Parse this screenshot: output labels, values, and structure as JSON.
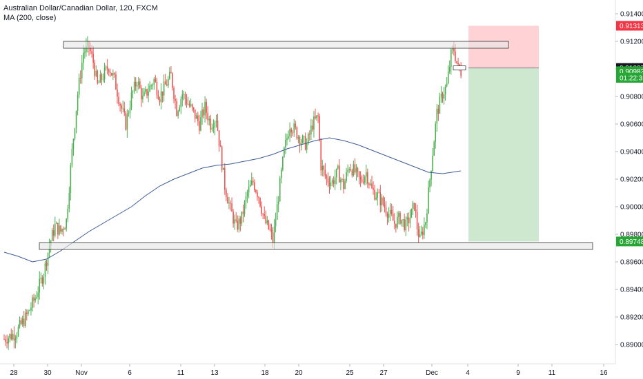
{
  "legend": {
    "title": "Australian Dollar/Canadian Dollar, 120, FXCM",
    "indicator": "MA (200, close)"
  },
  "colors": {
    "up": "#26a69a",
    "up_body": "#4caf50",
    "down": "#ef5350",
    "ma": "#3d5a96",
    "stop_zone": "#ffcdd2",
    "target_zone": "#c8e6c9",
    "stop_tag": "#f23645",
    "price_tag": "#131722",
    "target_tag": "#26a634",
    "grid": "#f0f3fa"
  },
  "chart_data": {
    "type": "candlestick",
    "title": "Australian Dollar/Canadian Dollar, 120, FXCM",
    "ylim": [
      0.8886,
      0.915
    ],
    "y_ticks": [
      0.89,
      0.892,
      0.894,
      0.896,
      0.898,
      0.9,
      0.902,
      0.904,
      0.906,
      0.908,
      0.91,
      0.912,
      0.914
    ],
    "y_tick_labels": [
      "0.89000",
      "0.89200",
      "0.89400",
      "0.89600",
      "0.89800",
      "0.90000",
      "0.90200",
      "0.90400",
      "0.90600",
      "0.90800",
      "0.91000",
      "0.91200",
      "0.91400"
    ],
    "x_tick_labels": [
      "28",
      "30",
      "Nov",
      "6",
      "11",
      "13",
      "18",
      "20",
      "25",
      "27",
      "Dec",
      "4",
      "9",
      "11",
      "16"
    ],
    "price_tags": [
      {
        "label": "0.91313",
        "value": 0.91313,
        "kind": "stop"
      },
      {
        "label": "0.91007",
        "value": 0.91007,
        "kind": "price"
      },
      {
        "label": "0.90983",
        "value": 0.90983,
        "kind": "current"
      },
      {
        "label": "01:22:35",
        "value": 0.90935,
        "kind": "countdown"
      },
      {
        "label": "0.89748",
        "value": 0.89748,
        "kind": "target"
      }
    ],
    "zones": [
      {
        "name": "resistance",
        "top": 0.912,
        "bottom": 0.9115
      },
      {
        "name": "support",
        "top": 0.8974,
        "bottom": 0.8969
      }
    ],
    "position": {
      "entry": 0.91007,
      "stop": 0.91313,
      "target": 0.89748
    },
    "trend_path": [
      [
        0,
        0.8904
      ],
      [
        8,
        0.8908
      ],
      [
        16,
        0.8921
      ],
      [
        22,
        0.8934
      ],
      [
        28,
        0.8952
      ],
      [
        32,
        0.8972
      ],
      [
        36,
        0.8986
      ],
      [
        40,
        0.8982
      ],
      [
        44,
        0.899
      ],
      [
        48,
        0.904
      ],
      [
        52,
        0.9082
      ],
      [
        56,
        0.9112
      ],
      [
        60,
        0.9116
      ],
      [
        63,
        0.9105
      ],
      [
        66,
        0.9088
      ],
      [
        70,
        0.9095
      ],
      [
        74,
        0.9102
      ],
      [
        78,
        0.9092
      ],
      [
        82,
        0.9075
      ],
      [
        86,
        0.906
      ],
      [
        90,
        0.908
      ],
      [
        94,
        0.9092
      ],
      [
        98,
        0.9078
      ],
      [
        102,
        0.9085
      ],
      [
        106,
        0.9092
      ],
      [
        110,
        0.908
      ],
      [
        114,
        0.9088
      ],
      [
        118,
        0.9095
      ],
      [
        122,
        0.907
      ],
      [
        126,
        0.9082
      ],
      [
        130,
        0.9075
      ],
      [
        134,
        0.9068
      ],
      [
        138,
        0.906
      ],
      [
        142,
        0.9072
      ],
      [
        146,
        0.906
      ],
      [
        150,
        0.9065
      ],
      [
        152,
        0.9048
      ],
      [
        156,
        0.9015
      ],
      [
        160,
        0.8998
      ],
      [
        164,
        0.8985
      ],
      [
        168,
        0.8992
      ],
      [
        172,
        0.901
      ],
      [
        176,
        0.9018
      ],
      [
        180,
        0.9008
      ],
      [
        184,
        0.899
      ],
      [
        188,
        0.8982
      ],
      [
        190,
        0.8975
      ],
      [
        194,
        0.9008
      ],
      [
        198,
        0.904
      ],
      [
        202,
        0.906
      ],
      [
        206,
        0.9055
      ],
      [
        210,
        0.9048
      ],
      [
        214,
        0.9045
      ],
      [
        218,
        0.906
      ],
      [
        222,
        0.9065
      ],
      [
        224,
        0.903
      ],
      [
        228,
        0.902
      ],
      [
        232,
        0.9018
      ],
      [
        236,
        0.9025
      ],
      [
        240,
        0.9015
      ],
      [
        244,
        0.903
      ],
      [
        248,
        0.9025
      ],
      [
        252,
        0.9018
      ],
      [
        256,
        0.9025
      ],
      [
        260,
        0.9012
      ],
      [
        264,
        0.9008
      ],
      [
        268,
        0.9002
      ],
      [
        272,
        0.8995
      ],
      [
        276,
        0.8988
      ],
      [
        280,
        0.8992
      ],
      [
        284,
        0.8986
      ],
      [
        288,
        0.8995
      ],
      [
        290,
        0.9002
      ],
      [
        292,
        0.8985
      ],
      [
        294,
        0.8976
      ],
      [
        298,
        0.899
      ],
      [
        302,
        0.903
      ],
      [
        306,
        0.9068
      ],
      [
        310,
        0.9082
      ],
      [
        313,
        0.9088
      ],
      [
        316,
        0.911
      ],
      [
        318,
        0.9114
      ],
      [
        321,
        0.91
      ],
      [
        323,
        0.9098
      ]
    ],
    "ma_path": [
      [
        0,
        0.8967
      ],
      [
        10,
        0.8964
      ],
      [
        20,
        0.896
      ],
      [
        30,
        0.8962
      ],
      [
        40,
        0.8968
      ],
      [
        50,
        0.8975
      ],
      [
        60,
        0.8982
      ],
      [
        70,
        0.8988
      ],
      [
        80,
        0.8994
      ],
      [
        90,
        0.9
      ],
      [
        100,
        0.9008
      ],
      [
        110,
        0.9015
      ],
      [
        120,
        0.902
      ],
      [
        130,
        0.9024
      ],
      [
        140,
        0.9028
      ],
      [
        150,
        0.903
      ],
      [
        160,
        0.9031
      ],
      [
        170,
        0.9033
      ],
      [
        180,
        0.9035
      ],
      [
        190,
        0.9038
      ],
      [
        200,
        0.9042
      ],
      [
        210,
        0.9045
      ],
      [
        220,
        0.9048
      ],
      [
        230,
        0.905
      ],
      [
        240,
        0.9048
      ],
      [
        250,
        0.9045
      ],
      [
        260,
        0.9041
      ],
      [
        270,
        0.9037
      ],
      [
        280,
        0.9033
      ],
      [
        290,
        0.9029
      ],
      [
        300,
        0.9025
      ],
      [
        310,
        0.9024
      ],
      [
        323,
        0.9026
      ]
    ],
    "grid": false,
    "legend_position": "top-left"
  }
}
